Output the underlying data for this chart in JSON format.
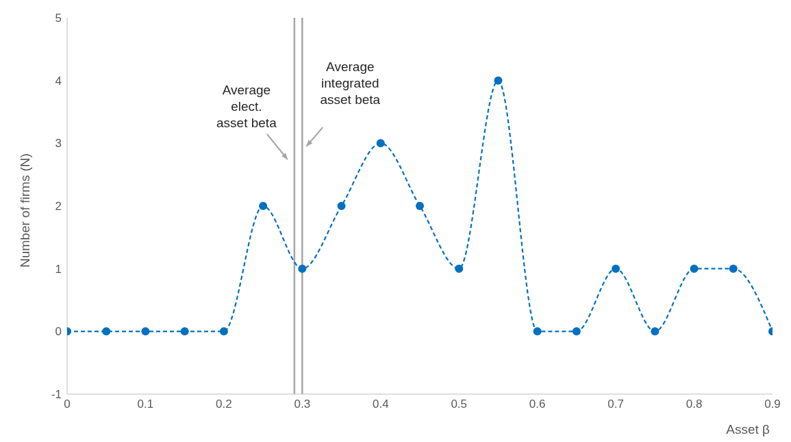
{
  "chart_data": {
    "type": "line",
    "xlabel": "Asset β",
    "ylabel": "Number of firms (N)",
    "x": [
      0,
      0.05,
      0.1,
      0.15,
      0.2,
      0.25,
      0.3,
      0.35,
      0.4,
      0.45,
      0.5,
      0.55,
      0.6,
      0.65,
      0.7,
      0.75,
      0.8,
      0.85,
      0.9
    ],
    "series": [
      {
        "color": "#0070c0",
        "values": [
          0,
          0,
          0,
          0,
          0,
          2,
          1,
          2,
          3,
          2,
          1,
          4,
          0,
          0,
          1,
          0,
          1,
          1,
          0
        ]
      }
    ],
    "xlim": [
      0,
      0.9
    ],
    "xticks": [
      0,
      0.1,
      0.2,
      0.3,
      0.4,
      0.5,
      0.6,
      0.7,
      0.8,
      0.9
    ],
    "ylim": [
      -1,
      5
    ],
    "yticks": [
      -1,
      0,
      1,
      2,
      3,
      4,
      5
    ],
    "ref_lines": [
      {
        "axis": "x",
        "value": 0.29,
        "label": "Average elect. asset beta",
        "color": "#a6a6a6"
      },
      {
        "axis": "x",
        "value": 0.3,
        "label": "Average integrated asset beta",
        "color": "#a6a6a6"
      }
    ],
    "grid": false,
    "legend": false,
    "marker": "circle",
    "line_style": "dashed"
  }
}
